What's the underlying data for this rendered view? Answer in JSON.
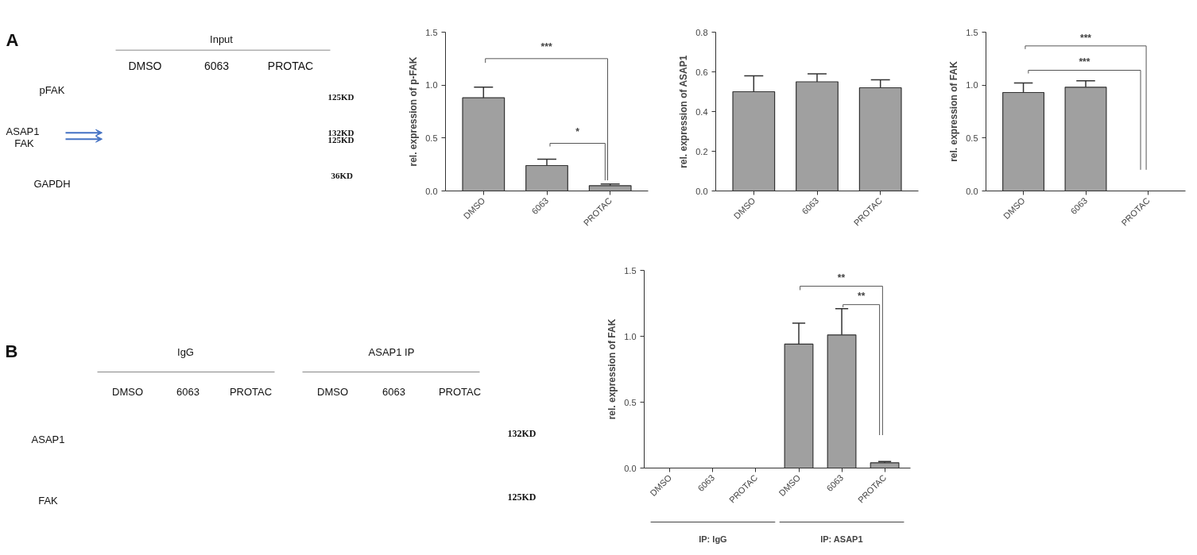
{
  "chart_data": [
    {
      "type": "other",
      "annotations": [
        "A",
        "Input",
        "DMSO",
        "6063",
        "PROTAC",
        "pFAK",
        "ASAP1",
        "FAK",
        "GAPDH",
        "125KD",
        "132KD",
        "125KD",
        "36KD"
      ]
    },
    {
      "type": "bar",
      "categories": [
        "DMSO",
        "6063",
        "PROTAC"
      ],
      "values": [
        0.88,
        0.24,
        0.05
      ],
      "errors": [
        [
          0.88,
          0.98
        ],
        [
          0.24,
          0.3
        ],
        [
          0.05,
          0.065
        ]
      ],
      "color": "#a0a0a0",
      "ylabel": "rel. expression of p-FAK",
      "ylim": [
        0,
        1.5
      ],
      "yticks": [
        {
          "value": 0,
          "label": "0.0"
        },
        {
          "value": 0.5,
          "label": "0.5"
        },
        {
          "value": 1,
          "label": "1.0"
        },
        {
          "value": 1.5,
          "label": "1.5"
        }
      ],
      "grid": false,
      "annotations": [
        "***",
        "*"
      ]
    },
    {
      "type": "bar",
      "categories": [
        "DMSO",
        "6063",
        "PROTAC"
      ],
      "values": [
        0.5,
        0.55,
        0.52
      ],
      "errors": [
        [
          0.5,
          0.58
        ],
        [
          0.55,
          0.59
        ],
        [
          0.52,
          0.56
        ]
      ],
      "color": "#a0a0a0",
      "ylabel": "rel. expression of ASAP1",
      "ylim": [
        0,
        0.8
      ],
      "yticks": [
        {
          "value": 0,
          "label": "0.0"
        },
        {
          "value": 0.2,
          "label": "0.2"
        },
        {
          "value": 0.4,
          "label": "0.4"
        },
        {
          "value": 0.6,
          "label": "0.6"
        },
        {
          "value": 0.8,
          "label": "0.8"
        }
      ],
      "grid": false
    },
    {
      "type": "bar",
      "categories": [
        "DMSO",
        "6063",
        "PROTAC"
      ],
      "values": [
        0.93,
        0.98,
        0
      ],
      "errors": [
        [
          0.93,
          1.02
        ],
        [
          0.98,
          1.04
        ],
        null
      ],
      "color": "#a0a0a0",
      "ylabel": "rel. expression of FAK",
      "ylim": [
        0,
        1.5
      ],
      "yticks": [
        {
          "value": 0,
          "label": "0.0"
        },
        {
          "value": 0.5,
          "label": "0.5"
        },
        {
          "value": 1,
          "label": "1.0"
        },
        {
          "value": 1.5,
          "label": "1.5"
        }
      ],
      "grid": false,
      "annotations": [
        "***",
        "***"
      ]
    },
    {
      "type": "bar",
      "categories": [
        "DMSO",
        "6063",
        "PROTAC",
        "DMSO",
        "6063",
        "PROTAC"
      ],
      "values": [
        0,
        0,
        0,
        0.94,
        1.01,
        0.04
      ],
      "errors": [
        null,
        null,
        null,
        [
          0.94,
          1.1
        ],
        [
          1.01,
          1.21
        ],
        [
          0.04,
          0.05
        ]
      ],
      "color": "#a0a0a0",
      "ylabel": "rel. expression of FAK",
      "ylim": [
        0,
        1.5
      ],
      "yticks": [
        {
          "value": 0,
          "label": "0.0"
        },
        {
          "value": 0.5,
          "label": "0.5"
        },
        {
          "value": 1,
          "label": "1.0"
        },
        {
          "value": 1.5,
          "label": "1.5"
        }
      ],
      "grid": false,
      "annotations": [
        "**",
        "**",
        "IP: IgG",
        "IP: ASAP1"
      ]
    },
    {
      "type": "other",
      "annotations": [
        "B",
        "IgG",
        "ASAP1 IP",
        "DMSO",
        "6063",
        "PROTAC",
        "DMSO",
        "6063",
        "PROTAC",
        "ASAP1",
        "FAK",
        "132KD",
        "125KD"
      ]
    }
  ]
}
